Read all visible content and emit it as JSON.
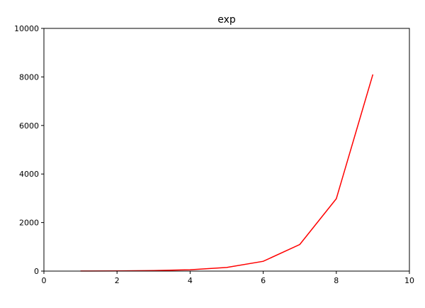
{
  "chart_data": {
    "type": "line",
    "title": "exp",
    "xlabel": "",
    "ylabel": "",
    "xlim": [
      0,
      10
    ],
    "ylim": [
      0,
      10000
    ],
    "xticks": [
      "0",
      "2",
      "4",
      "6",
      "8",
      "10"
    ],
    "yticks": [
      "0",
      "2000",
      "4000",
      "6000",
      "8000",
      "10000"
    ],
    "grid": false,
    "series": [
      {
        "color": "#ff0000",
        "x": [
          1,
          2,
          3,
          4,
          5,
          6,
          7,
          8,
          9
        ],
        "y": [
          2.7,
          7.4,
          20.1,
          54.6,
          148.4,
          403.4,
          1096.6,
          2981.0,
          8103.1
        ]
      }
    ]
  }
}
